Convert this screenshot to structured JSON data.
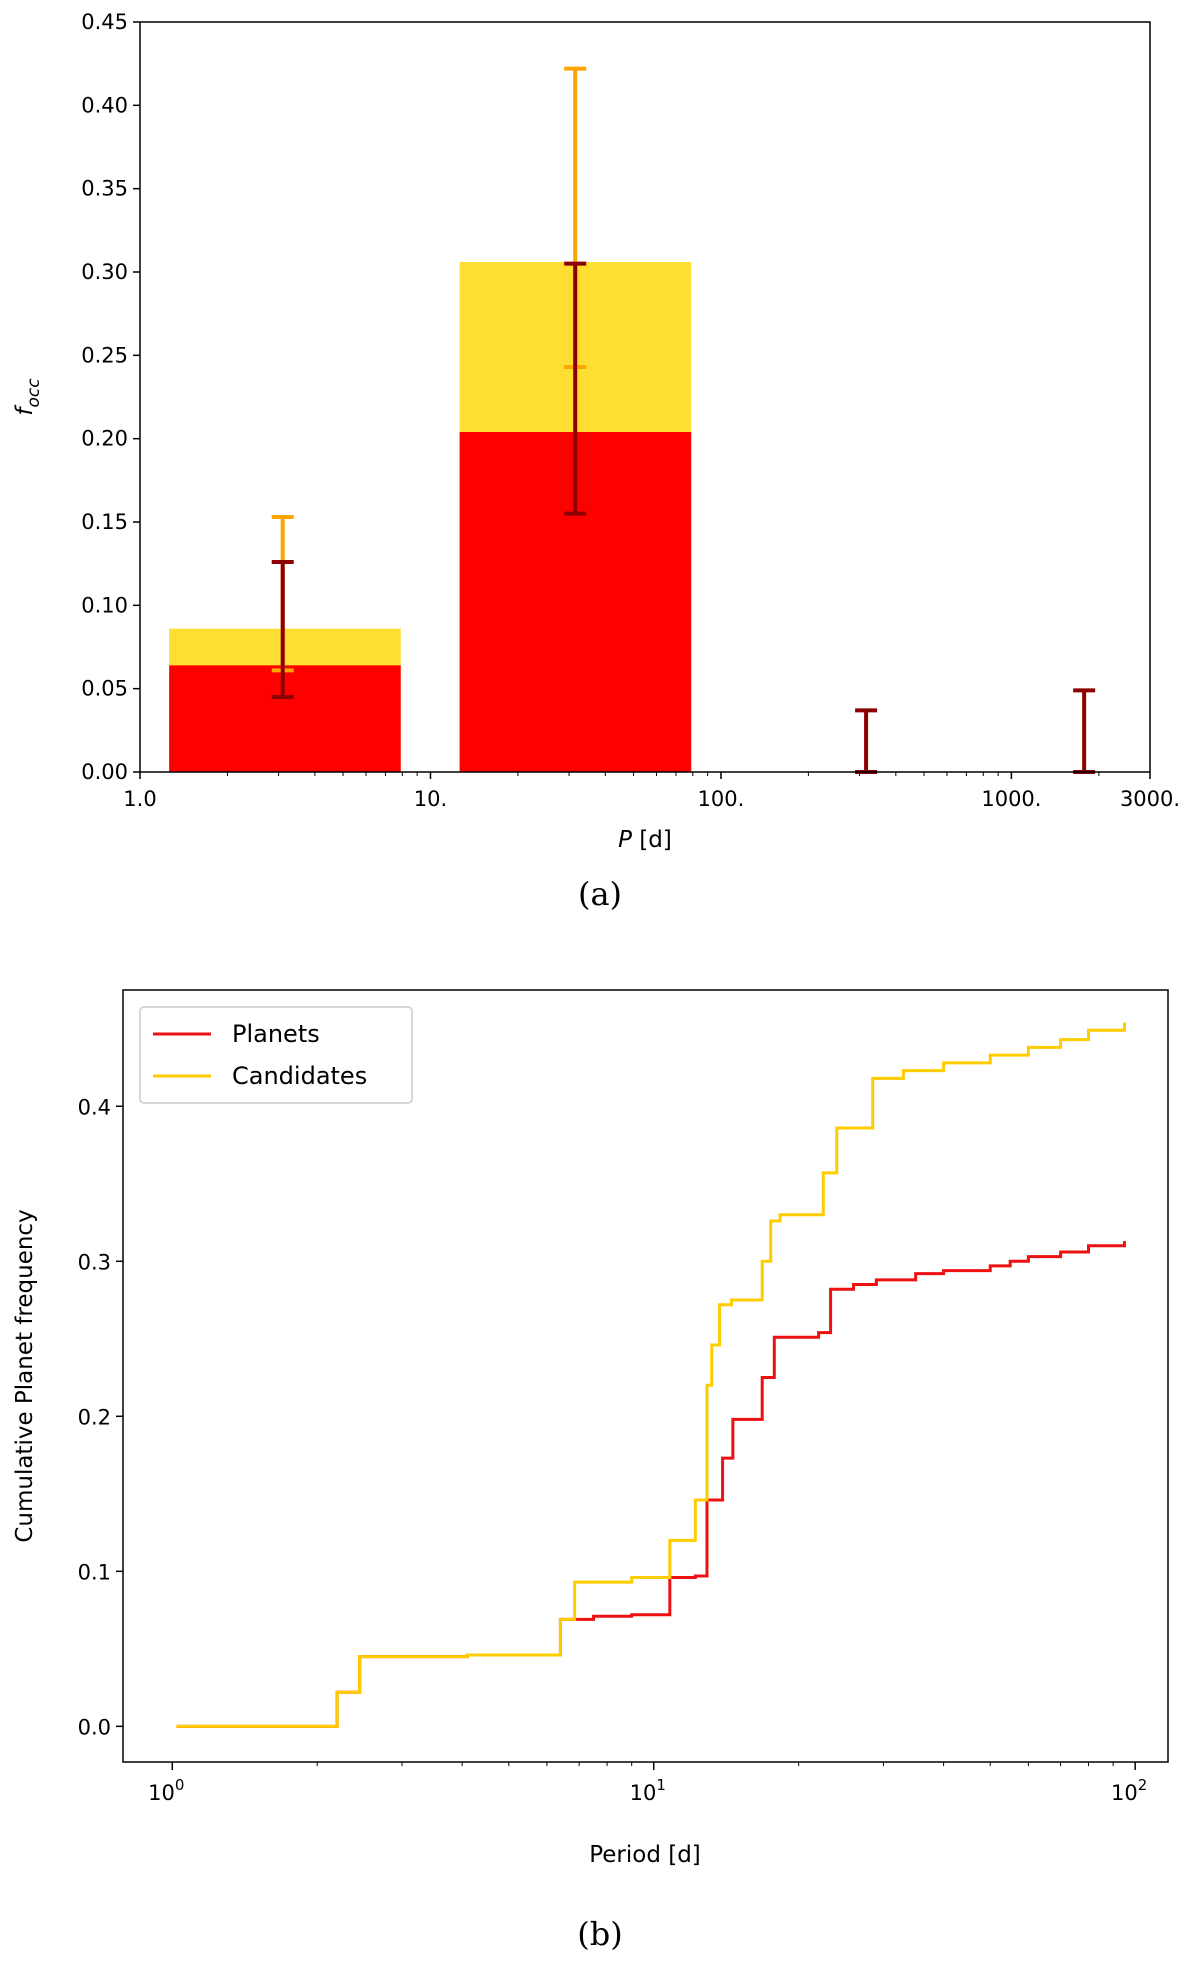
{
  "figure": {
    "caption_a": "(a)",
    "caption_b": "(b)"
  },
  "colors": {
    "planets": "#ff0000",
    "candidates": "#ffde33",
    "candidates_err": "#ffa500",
    "planets_err": "#8b0000",
    "cum_planets": "#ee1111",
    "cum_candidates": "#ffcc00"
  },
  "chart_data": [
    {
      "type": "bar",
      "ylabel": "f_occ",
      "xlabel": "P [d]",
      "x_scale": "log",
      "xlim": [
        1.0,
        3000
      ],
      "ylim": [
        0,
        0.45
      ],
      "x_ticks": [
        "1.0",
        "10.",
        "100.",
        "1000.",
        "3000."
      ],
      "x_tick_values": [
        1,
        10,
        100,
        1000,
        3000
      ],
      "y_ticks": [
        "0.00",
        "0.05",
        "0.10",
        "0.15",
        "0.20",
        "0.25",
        "0.30",
        "0.35",
        "0.40",
        "0.45"
      ],
      "y_tick_values": [
        0,
        0.05,
        0.1,
        0.15,
        0.2,
        0.25,
        0.3,
        0.35,
        0.4,
        0.45
      ],
      "bins": [
        {
          "x_lo": 1.26,
          "x_hi": 7.9,
          "center": 3.1,
          "candidates": 0.086,
          "planets": 0.064,
          "cand_err": [
            0.061,
            0.153
          ],
          "plan_err": [
            0.045,
            0.126
          ]
        },
        {
          "x_lo": 12.6,
          "x_hi": 79.0,
          "center": 31.5,
          "candidates": 0.306,
          "planets": 0.204,
          "cand_err": [
            0.243,
            0.422
          ],
          "plan_err": [
            0.155,
            0.305
          ]
        },
        {
          "x_lo": 126,
          "x_hi": 790,
          "center": 316,
          "candidates": 0,
          "planets": 0,
          "cand_err": null,
          "plan_err": [
            0,
            0.037
          ]
        },
        {
          "x_lo": 1260,
          "x_hi": 3000,
          "center": 1780,
          "candidates": 0,
          "planets": 0,
          "cand_err": null,
          "plan_err": [
            0,
            0.049
          ]
        }
      ]
    },
    {
      "type": "line",
      "ylabel": "Cumulative Planet frequency",
      "xlabel": "Period [d]",
      "x_scale": "log",
      "xlim": [
        0.79,
        117
      ],
      "ylim": [
        -0.023,
        0.475
      ],
      "x_ticks": [
        {
          "base": "10",
          "exp": "0",
          "value": 1
        },
        {
          "base": "10",
          "exp": "1",
          "value": 10
        },
        {
          "base": "10",
          "exp": "2",
          "value": 100
        }
      ],
      "y_ticks": [
        "0.0",
        "0.1",
        "0.2",
        "0.3",
        "0.4"
      ],
      "y_tick_values": [
        0,
        0.1,
        0.2,
        0.3,
        0.4
      ],
      "legend": {
        "placement": "upper-left"
      },
      "series": [
        {
          "name": "Planets",
          "step": true,
          "x": [
            1.02,
            2.2,
            2.45,
            4.1,
            6.4,
            6.85,
            7.5,
            9.0,
            10.8,
            12.2,
            12.9,
            13.9,
            14.6,
            16.8,
            17.8,
            22.0,
            23.3,
            26.0,
            29.0,
            35.0,
            40.0,
            50.0,
            55.0,
            60.0,
            70.0,
            80.0,
            95.0
          ],
          "y": [
            0.0,
            0.022,
            0.045,
            0.046,
            0.069,
            0.069,
            0.071,
            0.072,
            0.096,
            0.097,
            0.146,
            0.173,
            0.198,
            0.225,
            0.251,
            0.254,
            0.282,
            0.285,
            0.288,
            0.292,
            0.294,
            0.297,
            0.3,
            0.303,
            0.306,
            0.31,
            0.313
          ]
        },
        {
          "name": "Candidates",
          "step": true,
          "x": [
            1.02,
            2.2,
            2.45,
            4.1,
            6.4,
            6.85,
            9.0,
            10.8,
            12.2,
            12.9,
            13.2,
            13.7,
            14.5,
            16.8,
            17.5,
            18.3,
            22.5,
            24.0,
            28.5,
            33.0,
            40.0,
            50.0,
            60.0,
            70.0,
            80.0,
            95.0
          ],
          "y": [
            0.0,
            0.022,
            0.045,
            0.046,
            0.069,
            0.093,
            0.096,
            0.12,
            0.146,
            0.22,
            0.246,
            0.272,
            0.275,
            0.3,
            0.326,
            0.33,
            0.357,
            0.386,
            0.418,
            0.423,
            0.428,
            0.433,
            0.438,
            0.443,
            0.449,
            0.454
          ]
        }
      ]
    }
  ]
}
